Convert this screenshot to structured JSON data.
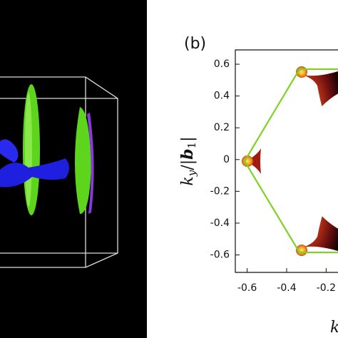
{
  "chart_data": {
    "type": "contour",
    "panel_label": "(b)",
    "ylabel_parts": [
      "k",
      "y",
      "/|",
      "b",
      "1",
      "|"
    ],
    "xlabel": "k",
    "xlim": [
      -0.66,
      -0.14
    ],
    "xticks": [
      -0.6,
      -0.4,
      -0.2
    ],
    "ylim": [
      -0.71,
      0.69
    ],
    "yticks": [
      0.6,
      0.4,
      0.2,
      0,
      -0.2,
      -0.4,
      -0.6
    ]
  }
}
